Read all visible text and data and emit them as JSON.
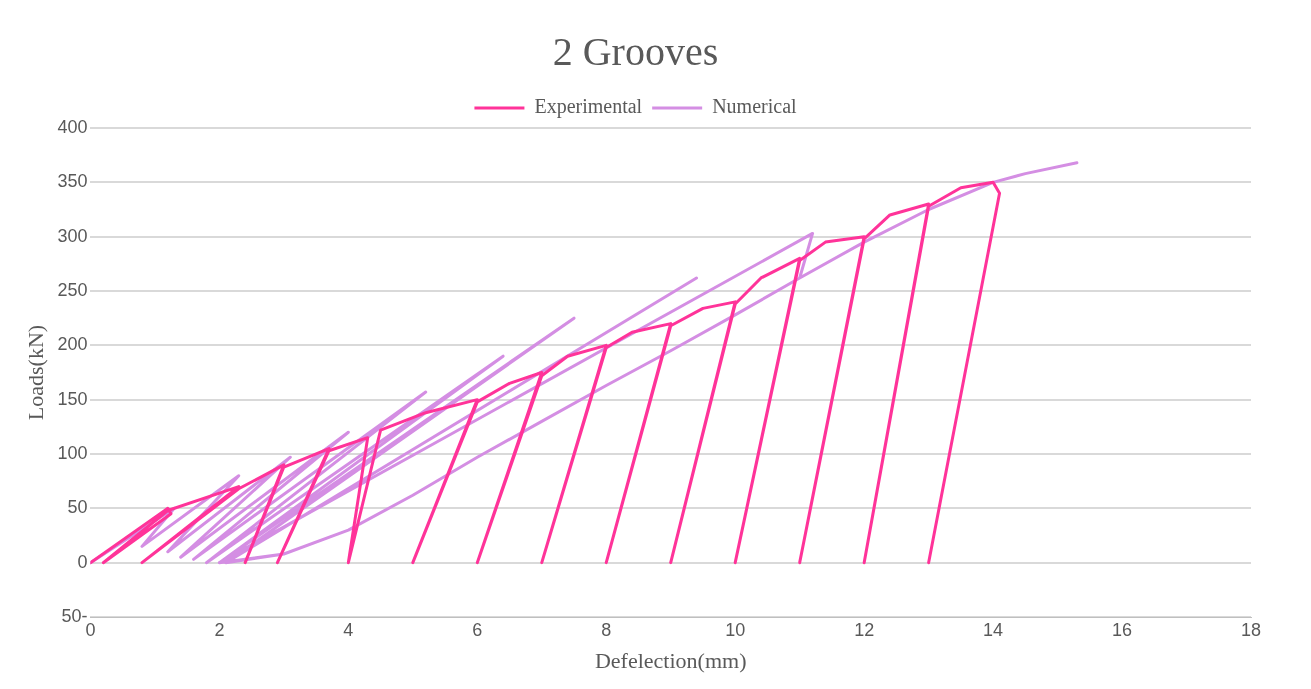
{
  "chart_data": {
    "type": "line",
    "title": "2 Grooves",
    "xlabel": "Defelection(mm)",
    "ylabel": "Loads(kN)",
    "legend": "top",
    "grid": "y",
    "marker": "none",
    "line_style": "solid",
    "xlim": [
      0,
      18
    ],
    "xticks": [
      0,
      2,
      4,
      6,
      8,
      10,
      12,
      14,
      16,
      18
    ],
    "ylim": [
      -50,
      400
    ],
    "yticks": [
      {
        "value": -50,
        "label": "50-"
      },
      0,
      50,
      100,
      150,
      200,
      250,
      300,
      350,
      400
    ],
    "series": [
      {
        "name": "Experimental",
        "color": "#ff3399",
        "x": [
          0,
          1.2,
          1.25,
          0.2,
          1.2,
          2.3,
          0.8,
          2.3,
          3.0,
          2.4,
          3.0,
          3.7,
          2.9,
          3.7,
          4.3,
          4.0,
          4.5,
          5.2,
          6.0,
          5.0,
          6.0,
          6.5,
          7.0,
          6.0,
          7.0,
          7.4,
          8.0,
          7.0,
          8.0,
          8.4,
          9.0,
          8.0,
          9.0,
          9.5,
          10.0,
          9.0,
          10.0,
          10.4,
          11.0,
          10.0,
          11.0,
          11.4,
          12.0,
          11.0,
          12.0,
          12.4,
          13.0,
          12.0,
          13.0,
          13.5,
          14.0,
          14.1,
          13.0
        ],
        "values": [
          0,
          50,
          45,
          0,
          48,
          70,
          0,
          68,
          90,
          0,
          88,
          105,
          0,
          103,
          115,
          0,
          122,
          138,
          150,
          0,
          148,
          165,
          175,
          0,
          172,
          190,
          200,
          0,
          198,
          212,
          220,
          0,
          218,
          234,
          240,
          0,
          238,
          262,
          280,
          0,
          278,
          295,
          300,
          0,
          298,
          320,
          330,
          0,
          328,
          345,
          350,
          340,
          0
        ]
      },
      {
        "name": "Numerical",
        "color": "#d48ee3",
        "x": [
          0,
          1.3,
          0.8,
          2.3,
          1.2,
          3.1,
          1.4,
          4.0,
          1.6,
          5.2,
          1.8,
          6.4,
          2.0,
          7.5,
          2.1,
          9.4,
          2.1,
          3,
          4,
          5,
          6,
          7,
          8,
          9,
          10,
          11,
          11.2,
          2.0,
          3,
          4,
          5,
          6,
          7,
          8,
          9,
          10,
          11,
          12,
          13,
          14,
          14.5,
          15.3
        ],
        "values": [
          0,
          50,
          15,
          80,
          10,
          97,
          5,
          120,
          3,
          157,
          0,
          190,
          0,
          225,
          0,
          262,
          0,
          8,
          30,
          62,
          97,
          130,
          163,
          195,
          228,
          262,
          303,
          0,
          8,
          30,
          62,
          97,
          130,
          163,
          195,
          228,
          262,
          295,
          325,
          350,
          358,
          368
        ]
      }
    ]
  }
}
